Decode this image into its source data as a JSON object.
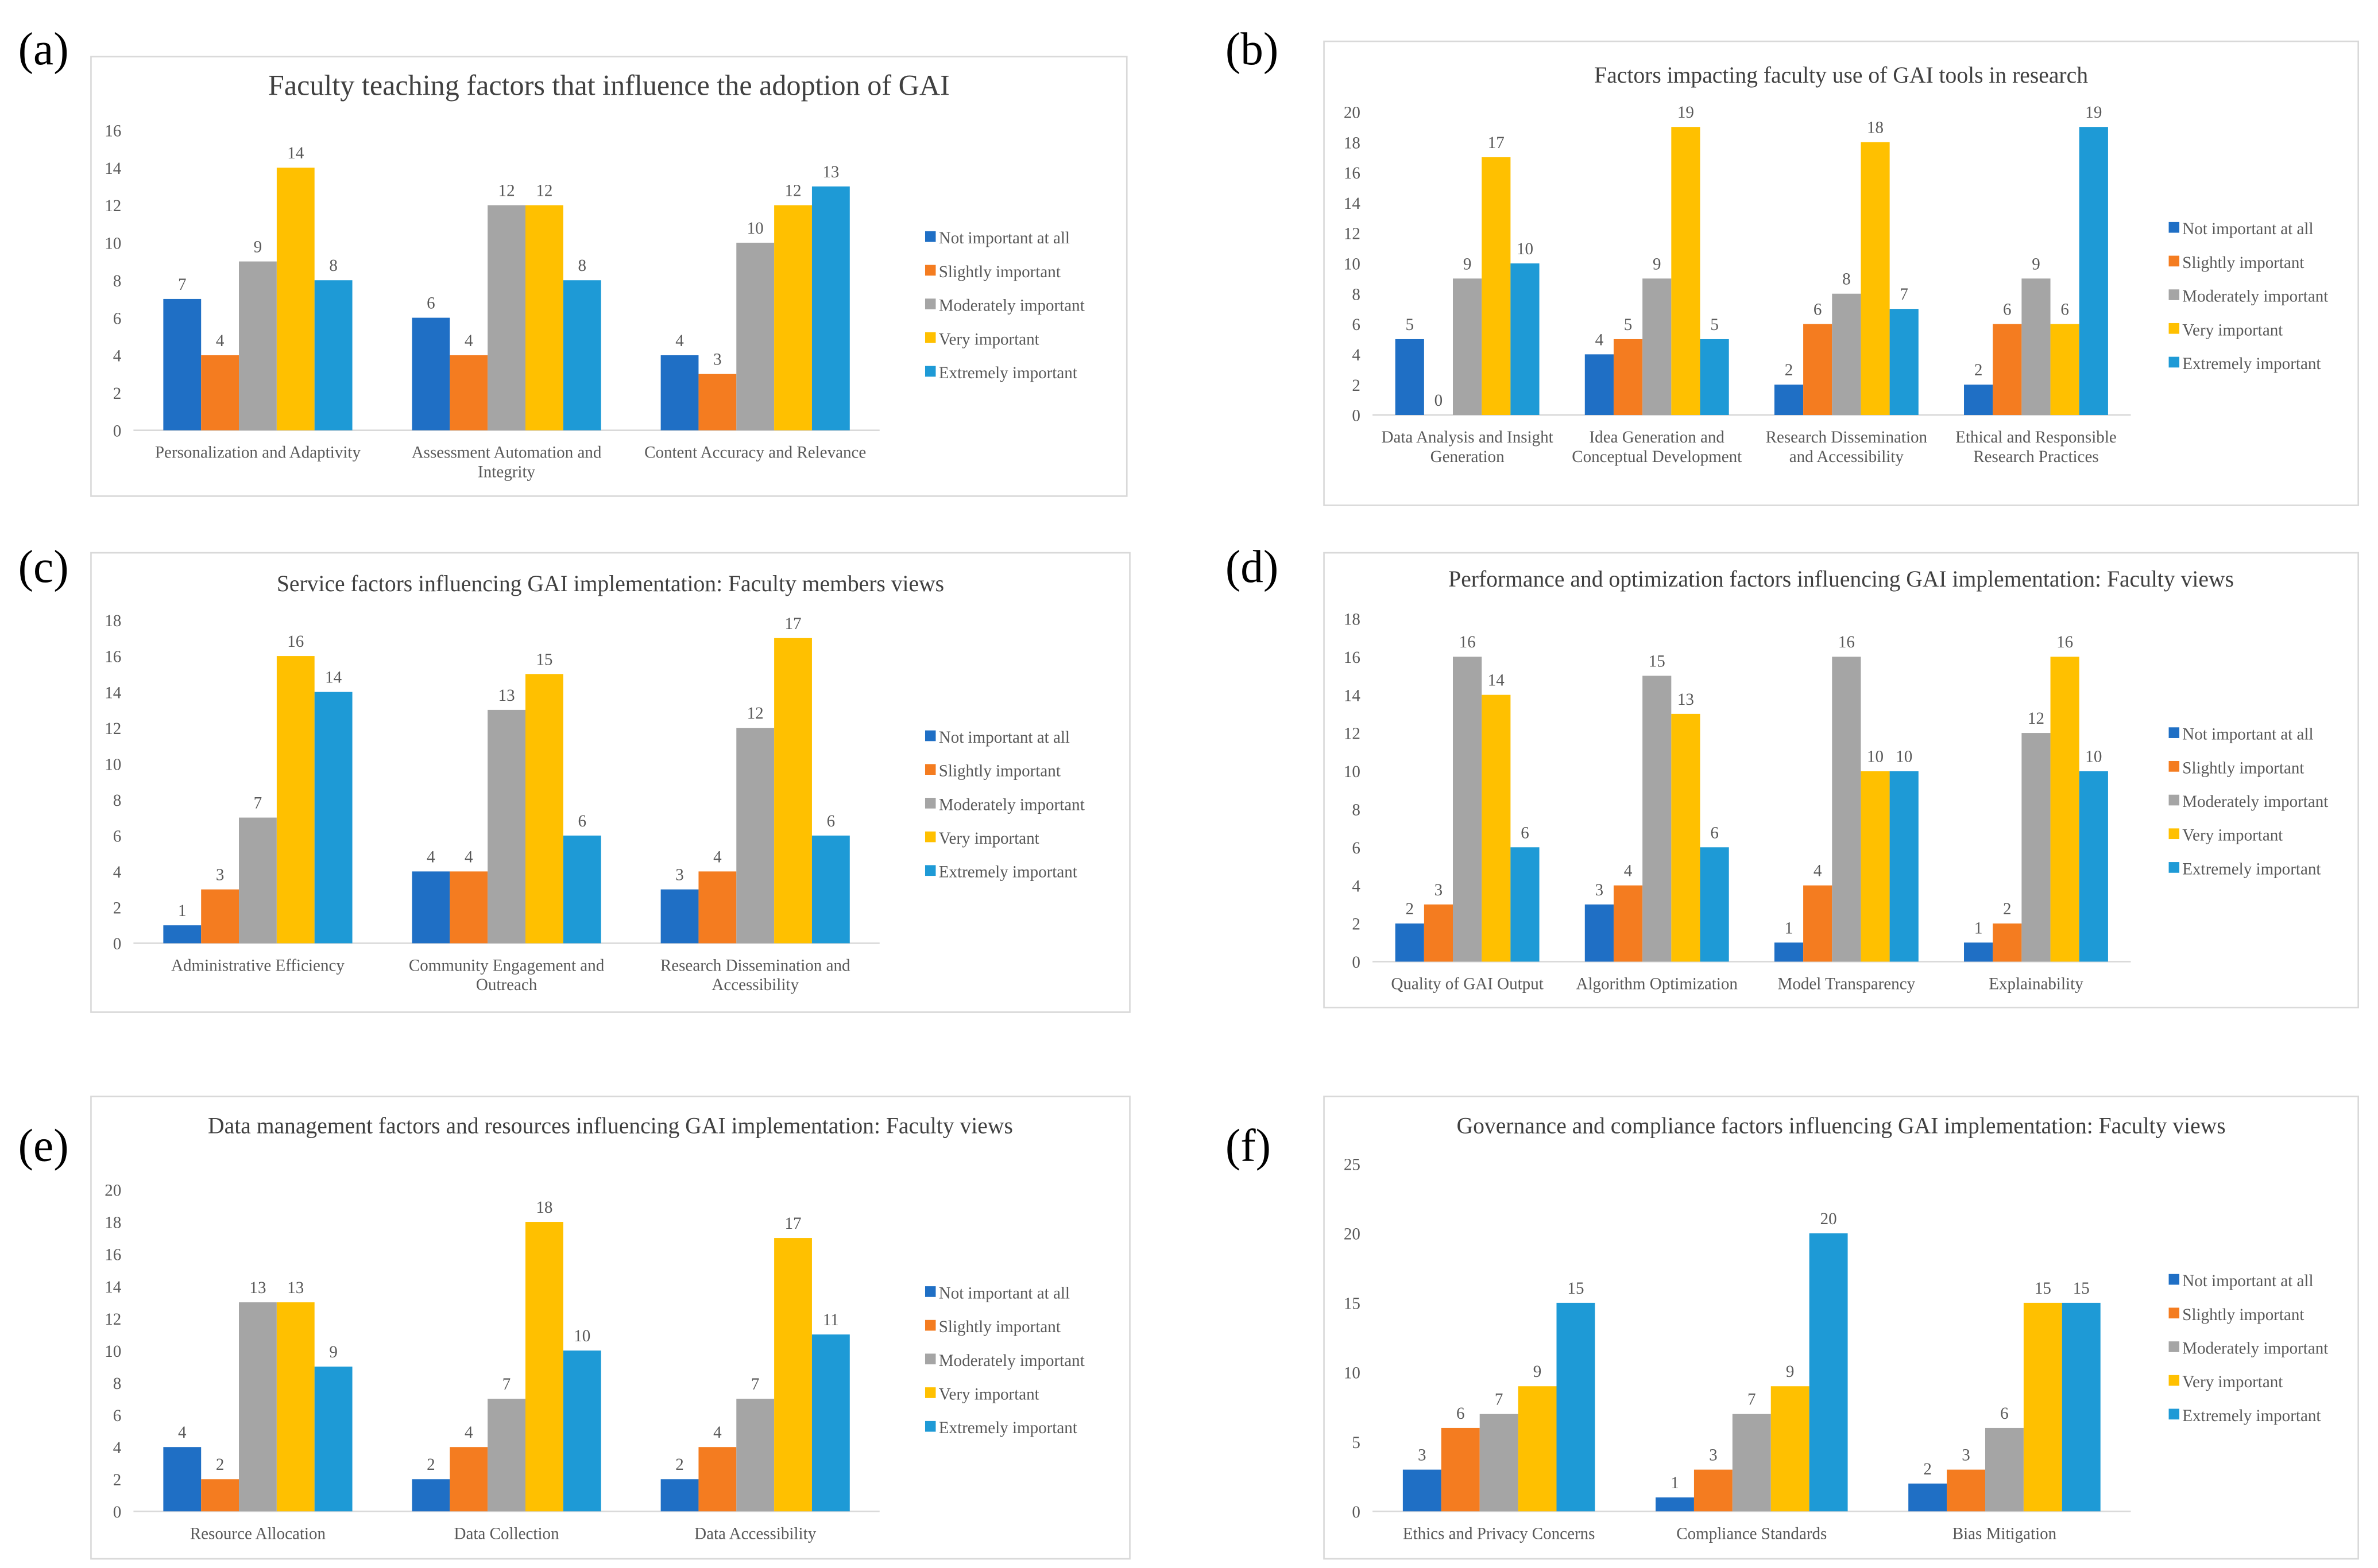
{
  "chart_data": [
    {
      "type": "bar",
      "panel_label": "(a)",
      "title": "Faculty teaching factors that influence the adoption of GAI",
      "categories": [
        "Personalization and Adaptivity",
        "Assessment Automation and Integrity",
        "Content Accuracy and Relevance"
      ],
      "series": [
        {
          "name": "Not important at all",
          "color": "#1f6fc5",
          "values": [
            7,
            6,
            4
          ]
        },
        {
          "name": "Slightly important",
          "color": "#f47c20",
          "values": [
            4,
            4,
            3
          ]
        },
        {
          "name": "Moderately important",
          "color": "#a5a5a5",
          "values": [
            9,
            12,
            10
          ]
        },
        {
          "name": "Very important",
          "color": "#ffc000",
          "values": [
            14,
            12,
            12
          ]
        },
        {
          "name": "Extremely important",
          "color": "#1e9ad6",
          "values": [
            8,
            8,
            13
          ]
        }
      ],
      "ylim": [
        0,
        16
      ],
      "yticks": [
        0,
        2,
        4,
        6,
        8,
        10,
        12,
        14,
        16
      ],
      "grid": false,
      "legend": "right"
    },
    {
      "type": "bar",
      "panel_label": "(b)",
      "title": "Factors impacting faculty use of GAI tools in research",
      "categories": [
        "Data Analysis and Insight Generation",
        "Idea Generation and Conceptual Development",
        "Research Dissemination and Accessibility",
        "Ethical and Responsible Research Practices"
      ],
      "series": [
        {
          "name": "Not important at all",
          "color": "#1f6fc5",
          "values": [
            5,
            4,
            2,
            2
          ]
        },
        {
          "name": "Slightly important",
          "color": "#f47c20",
          "values": [
            0,
            5,
            6,
            6
          ]
        },
        {
          "name": "Moderately important",
          "color": "#a5a5a5",
          "values": [
            9,
            9,
            8,
            9
          ]
        },
        {
          "name": "Very important",
          "color": "#ffc000",
          "values": [
            17,
            19,
            18,
            6
          ]
        },
        {
          "name": "Extremely important",
          "color": "#1e9ad6",
          "values": [
            10,
            5,
            7,
            19
          ]
        }
      ],
      "ylim": [
        0,
        20
      ],
      "yticks": [
        0,
        2,
        4,
        6,
        8,
        10,
        12,
        14,
        16,
        18,
        20
      ],
      "grid": false,
      "legend": "right"
    },
    {
      "type": "bar",
      "panel_label": "(c)",
      "title": "Service factors influencing GAI implementation: Faculty members views",
      "categories": [
        "Administrative Efficiency",
        "Community Engagement and Outreach",
        "Research Dissemination and Accessibility"
      ],
      "series": [
        {
          "name": "Not important at all",
          "color": "#1f6fc5",
          "values": [
            1,
            4,
            3
          ]
        },
        {
          "name": "Slightly important",
          "color": "#f47c20",
          "values": [
            3,
            4,
            4
          ]
        },
        {
          "name": "Moderately important",
          "color": "#a5a5a5",
          "values": [
            7,
            13,
            12
          ]
        },
        {
          "name": "Very important",
          "color": "#ffc000",
          "values": [
            16,
            15,
            17
          ]
        },
        {
          "name": "Extremely important",
          "color": "#1e9ad6",
          "values": [
            14,
            6,
            6
          ]
        }
      ],
      "ylim": [
        0,
        18
      ],
      "yticks": [
        0,
        2,
        4,
        6,
        8,
        10,
        12,
        14,
        16,
        18
      ],
      "grid": false,
      "legend": "right"
    },
    {
      "type": "bar",
      "panel_label": "(d)",
      "title": "Performance and optimization factors influencing GAI implementation: Faculty views",
      "categories": [
        "Quality of GAI Output",
        "Algorithm Optimization",
        "Model Transparency",
        "Explainability"
      ],
      "series": [
        {
          "name": "Not important at all",
          "color": "#1f6fc5",
          "values": [
            2,
            3,
            1,
            1
          ]
        },
        {
          "name": "Slightly important",
          "color": "#f47c20",
          "values": [
            3,
            4,
            4,
            2
          ]
        },
        {
          "name": "Moderately important",
          "color": "#a5a5a5",
          "values": [
            16,
            15,
            16,
            12
          ]
        },
        {
          "name": "Very important",
          "color": "#ffc000",
          "values": [
            14,
            13,
            10,
            16
          ]
        },
        {
          "name": "Extremely important",
          "color": "#1e9ad6",
          "values": [
            6,
            6,
            10,
            10
          ]
        }
      ],
      "ylim": [
        0,
        18
      ],
      "yticks": [
        0,
        2,
        4,
        6,
        8,
        10,
        12,
        14,
        16,
        18
      ],
      "grid": false,
      "legend": "right"
    },
    {
      "type": "bar",
      "panel_label": "(e)",
      "title": "Data management factors and resources influencing GAI implementation: Faculty views",
      "categories": [
        "Resource Allocation",
        "Data Collection",
        "Data Accessibility"
      ],
      "series": [
        {
          "name": "Not important at all",
          "color": "#1f6fc5",
          "values": [
            4,
            2,
            2
          ]
        },
        {
          "name": "Slightly important",
          "color": "#f47c20",
          "values": [
            2,
            4,
            4
          ]
        },
        {
          "name": "Moderately important",
          "color": "#a5a5a5",
          "values": [
            13,
            7,
            7
          ]
        },
        {
          "name": "Very important",
          "color": "#ffc000",
          "values": [
            13,
            18,
            17
          ]
        },
        {
          "name": "Extremely important",
          "color": "#1e9ad6",
          "values": [
            9,
            10,
            11
          ]
        }
      ],
      "ylim": [
        0,
        20
      ],
      "yticks": [
        0,
        2,
        4,
        6,
        8,
        10,
        12,
        14,
        16,
        18,
        20
      ],
      "grid": false,
      "legend": "right"
    },
    {
      "type": "bar",
      "panel_label": "(f)",
      "title": "Governance and compliance factors influencing GAI implementation: Faculty views",
      "categories": [
        "Ethics and Privacy Concerns",
        "Compliance Standards",
        "Bias Mitigation"
      ],
      "series": [
        {
          "name": "Not important at all",
          "color": "#1f6fc5",
          "values": [
            3,
            1,
            2
          ]
        },
        {
          "name": "Slightly important",
          "color": "#f47c20",
          "values": [
            6,
            3,
            3
          ]
        },
        {
          "name": "Moderately important",
          "color": "#a5a5a5",
          "values": [
            7,
            7,
            6
          ]
        },
        {
          "name": "Very important",
          "color": "#ffc000",
          "values": [
            9,
            9,
            15
          ]
        },
        {
          "name": "Extremely important",
          "color": "#1e9ad6",
          "values": [
            15,
            20,
            15
          ]
        }
      ],
      "ylim": [
        0,
        25
      ],
      "yticks": [
        0,
        5,
        10,
        15,
        20,
        25
      ],
      "grid": false,
      "legend": "right"
    }
  ]
}
